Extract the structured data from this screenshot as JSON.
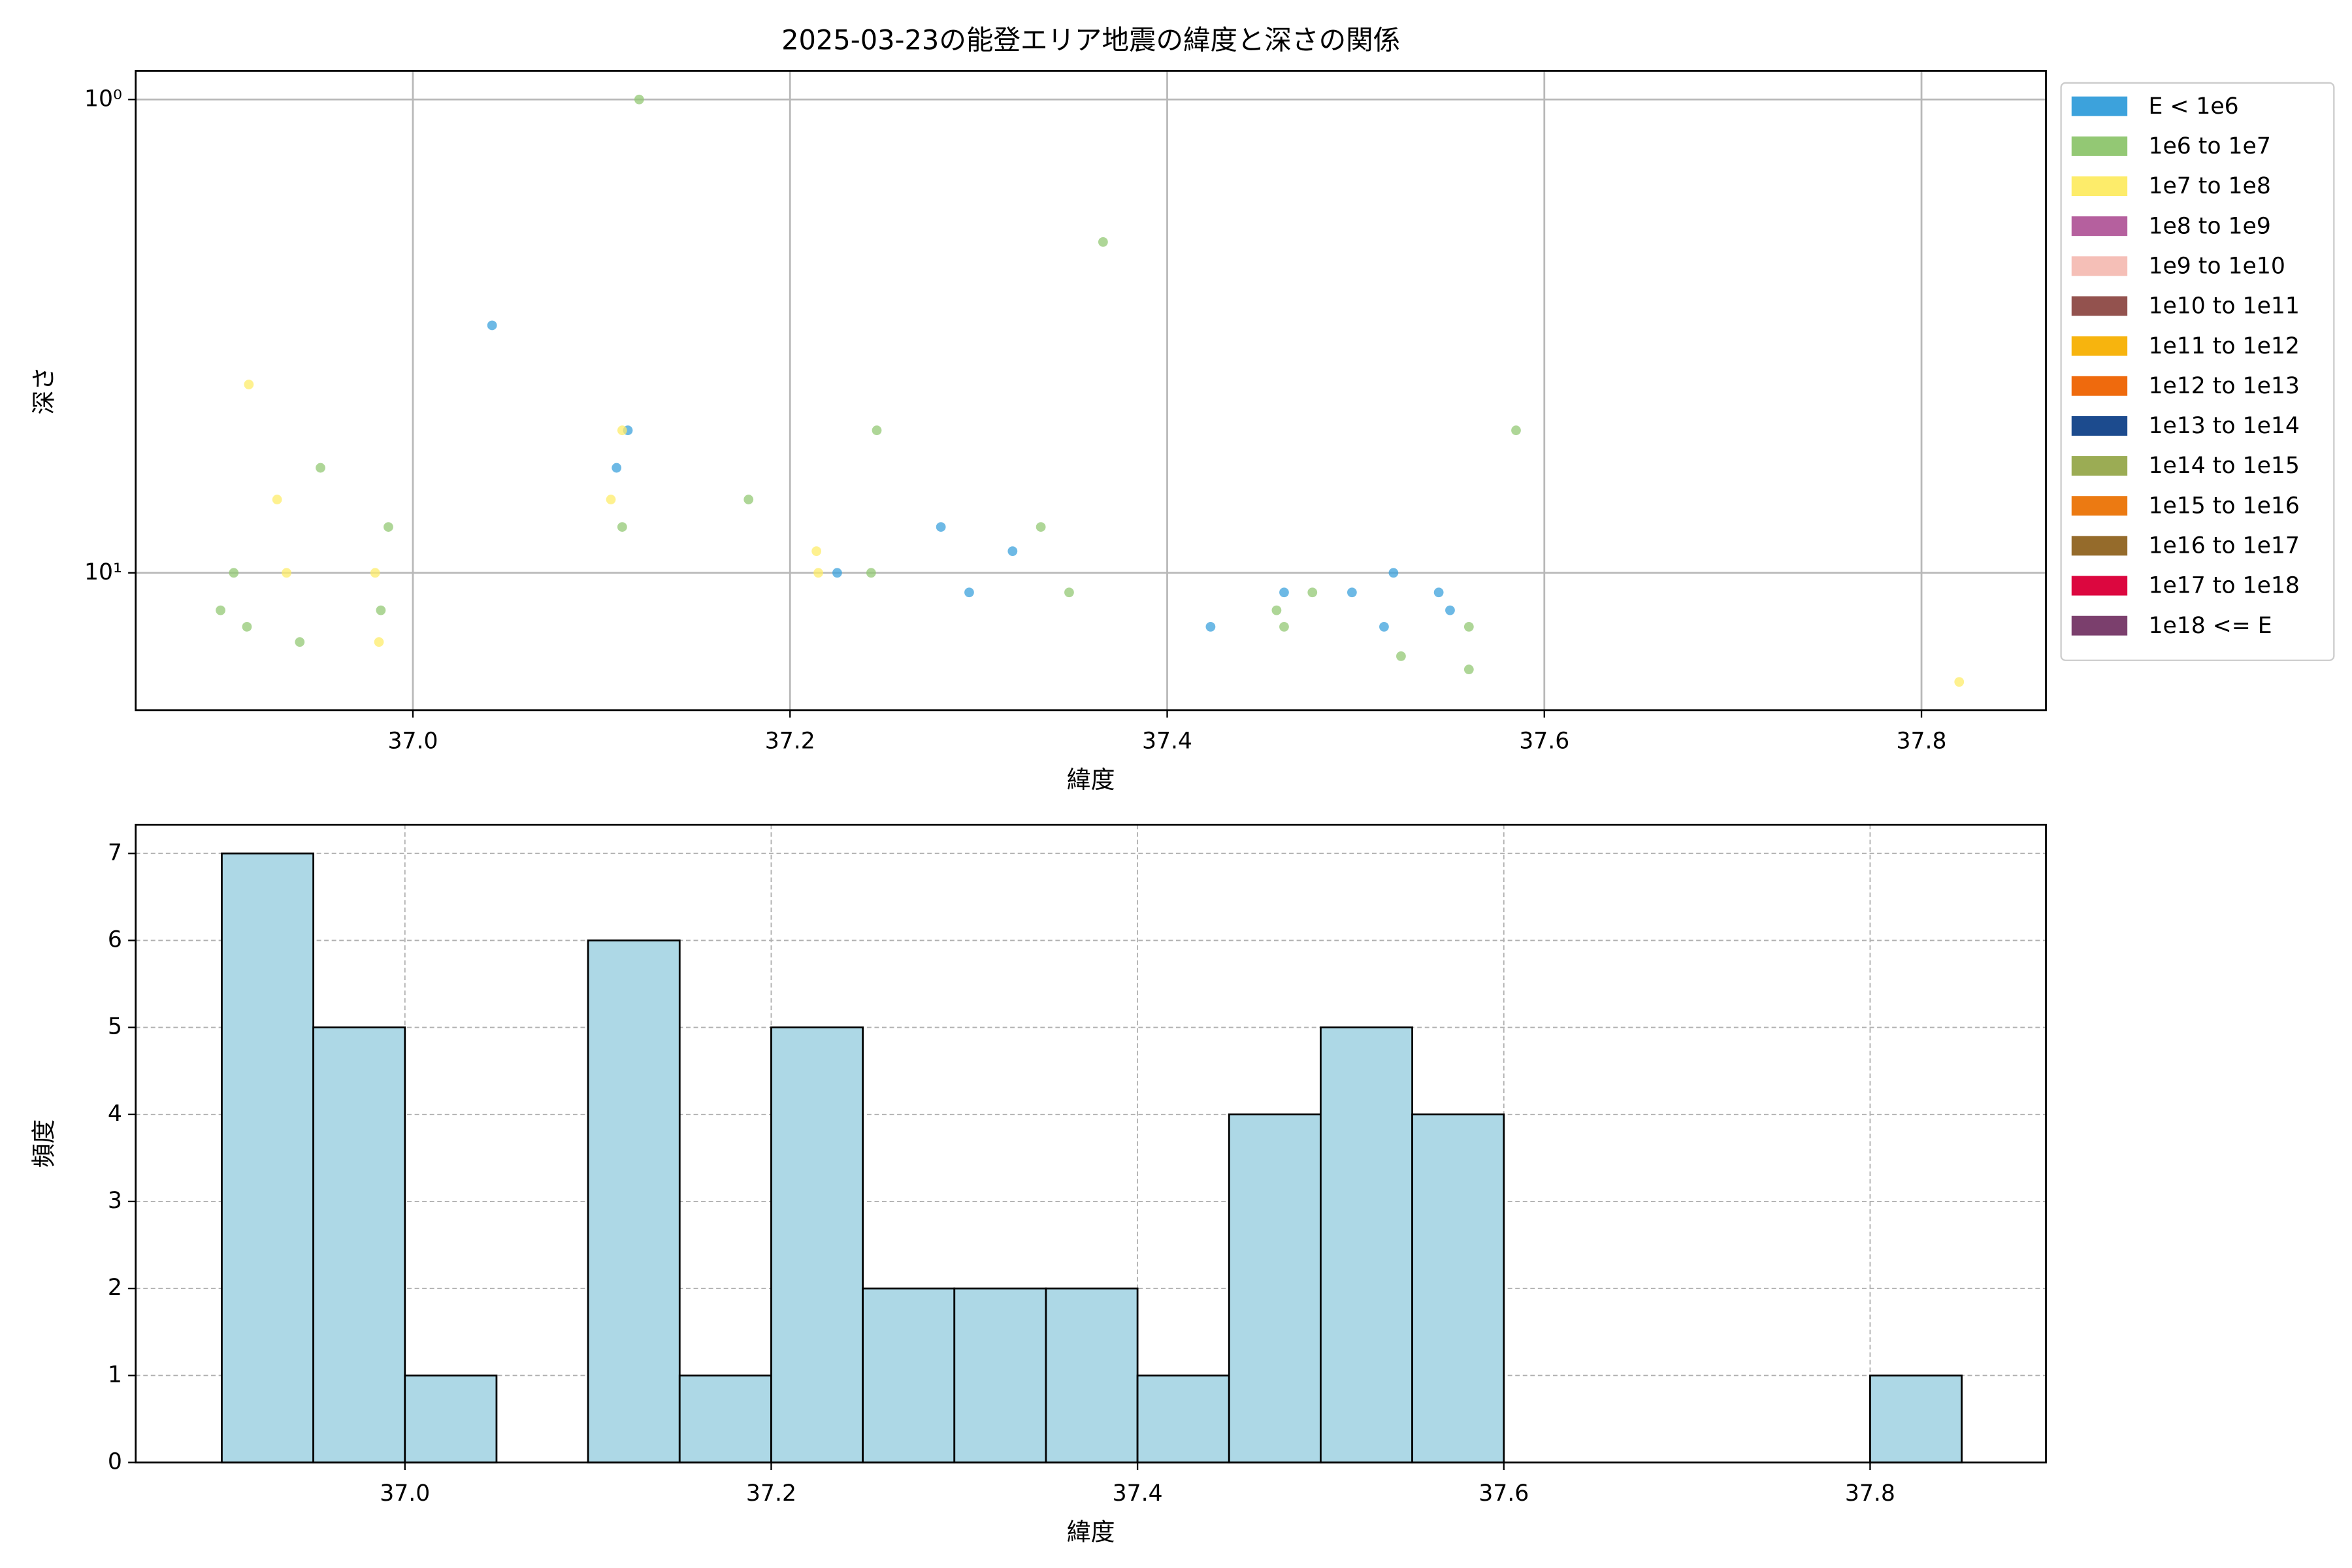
{
  "chart_data": [
    {
      "type": "scatter",
      "title": "2025-03-23の能登エリア地震の緯度と深さの関係",
      "x_label": "緯度",
      "y_label": "深さ",
      "log_y": true,
      "grid": true,
      "grid_linestyle": "solid",
      "legend_loc": "outside upper right",
      "xlim": [
        36.853,
        37.866
      ],
      "ylim": [
        19.5,
        0.87
      ],
      "xticks": [
        {
          "value": 37.0,
          "label": "37.0"
        },
        {
          "value": 37.2,
          "label": "37.2"
        },
        {
          "value": 37.4,
          "label": "37.4"
        },
        {
          "value": 37.6,
          "label": "37.6"
        },
        {
          "value": 37.8,
          "label": "37.8"
        }
      ],
      "yticks": [
        {
          "value": 1,
          "label": "10⁰"
        },
        {
          "value": 10,
          "label": "10¹"
        }
      ],
      "series": [
        {
          "name": "E < 1e6",
          "color": "#3ca2dc",
          "x": [
            37.042,
            37.108,
            37.114,
            37.225,
            37.28,
            37.295,
            37.318,
            37.423,
            37.462,
            37.498,
            37.515,
            37.52,
            37.544,
            37.55
          ],
          "values": [
            3,
            6,
            5,
            10,
            8,
            11,
            9,
            13,
            11,
            11,
            13,
            10,
            11,
            12
          ]
        },
        {
          "name": "1e6 to 1e7",
          "color": "#93c874",
          "x": [
            36.898,
            36.905,
            36.912,
            36.94,
            36.951,
            36.983,
            36.987,
            37.111,
            37.12,
            37.178,
            37.246,
            37.243,
            37.333,
            37.348,
            37.366,
            37.458,
            37.462,
            37.477,
            37.524,
            37.56,
            37.56,
            37.585
          ],
          "values": [
            12,
            10,
            13,
            14,
            6,
            12,
            8,
            8,
            1,
            7,
            5,
            10,
            8,
            11,
            2,
            12,
            13,
            11,
            15,
            13,
            16,
            5
          ]
        },
        {
          "name": "1e7 to 1e8",
          "color": "#fdec6a",
          "x": [
            36.913,
            36.928,
            36.933,
            36.98,
            36.982,
            37.111,
            37.105,
            37.214,
            37.215,
            37.82
          ],
          "values": [
            4,
            7,
            10,
            10,
            14,
            5,
            7,
            9,
            10,
            17
          ]
        },
        {
          "name": "1e8 to 1e9",
          "color": "#b5609e",
          "x": [],
          "values": []
        },
        {
          "name": "1e9 to 1e10",
          "color": "#f5bfb7",
          "x": [],
          "values": []
        },
        {
          "name": "1e10 to 1e11",
          "color": "#93524e",
          "x": [],
          "values": []
        },
        {
          "name": "1e11 to 1e12",
          "color": "#f7b40e",
          "x": [],
          "values": []
        },
        {
          "name": "1e12 to 1e13",
          "color": "#ef6a0d",
          "x": [],
          "values": []
        },
        {
          "name": "1e13 to 1e14",
          "color": "#1c4b8e",
          "x": [],
          "values": []
        },
        {
          "name": "1e14 to 1e15",
          "color": "#9bac54",
          "x": [],
          "values": []
        },
        {
          "name": "1e15 to 1e16",
          "color": "#ec7a12",
          "x": [],
          "values": []
        },
        {
          "name": "1e16 to 1e17",
          "color": "#956b2b",
          "x": [],
          "values": []
        },
        {
          "name": "1e17 to 1e18",
          "color": "#dc073f",
          "x": [],
          "values": []
        },
        {
          "name": "1e18 <= E",
          "color": "#7b3f6d",
          "x": [],
          "values": []
        }
      ]
    },
    {
      "type": "histogram",
      "x_label": "緯度",
      "y_label": "頻度",
      "color": "#add8e6",
      "edge_color": "#000000",
      "grid": true,
      "grid_linestyle": "dashed",
      "xlim": [
        36.853,
        37.896
      ],
      "ylim": [
        0,
        7.33
      ],
      "xticks": [
        {
          "value": 37.0,
          "label": "37.0"
        },
        {
          "value": 37.2,
          "label": "37.2"
        },
        {
          "value": 37.4,
          "label": "37.4"
        },
        {
          "value": 37.6,
          "label": "37.6"
        },
        {
          "value": 37.8,
          "label": "37.8"
        }
      ],
      "yticks": [
        0,
        1,
        2,
        3,
        4,
        5,
        6,
        7
      ],
      "bins": [
        36.9,
        36.95,
        37.0,
        37.05,
        37.1,
        37.15,
        37.2,
        37.25,
        37.3,
        37.35,
        37.4,
        37.45,
        37.5,
        37.55,
        37.6,
        37.65,
        37.7,
        37.75,
        37.8,
        37.85
      ],
      "values": [
        7,
        5,
        1,
        0,
        6,
        1,
        5,
        2,
        2,
        2,
        1,
        4,
        5,
        4,
        0,
        0,
        0,
        0,
        1
      ]
    }
  ]
}
